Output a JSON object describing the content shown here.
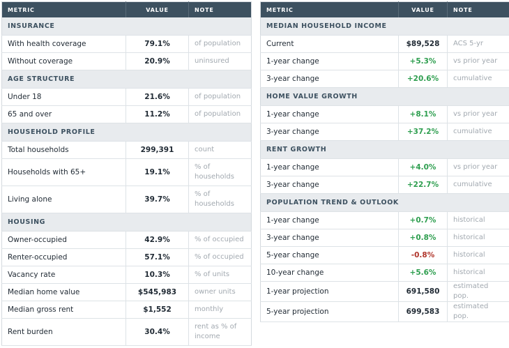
{
  "headers": {
    "metric": "Metric",
    "value": "Value",
    "note": "Note"
  },
  "left": {
    "sections": [
      {
        "title": "Insurance",
        "rows": [
          {
            "metric": "With health coverage",
            "value": "79.1%",
            "note": "of population"
          },
          {
            "metric": "Without coverage",
            "value": "20.9%",
            "note": "uninsured"
          }
        ]
      },
      {
        "title": "Age Structure",
        "rows": [
          {
            "metric": "Under 18",
            "value": "21.6%",
            "note": "of population"
          },
          {
            "metric": "65 and over",
            "value": "11.2%",
            "note": "of population"
          }
        ]
      },
      {
        "title": "Household Profile",
        "rows": [
          {
            "metric": "Total households",
            "value": "299,391",
            "note": "count"
          },
          {
            "metric": "Households with 65+",
            "value": "19.1%",
            "note": "% of households"
          },
          {
            "metric": "Living alone",
            "value": "39.7%",
            "note": "% of households"
          }
        ]
      },
      {
        "title": "Housing",
        "rows": [
          {
            "metric": "Owner-occupied",
            "value": "42.9%",
            "note": "% of occupied"
          },
          {
            "metric": "Renter-occupied",
            "value": "57.1%",
            "note": "% of occupied"
          },
          {
            "metric": "Vacancy rate",
            "value": "10.3%",
            "note": "% of units"
          },
          {
            "metric": "Median home value",
            "value": "$545,983",
            "note": "owner units"
          },
          {
            "metric": "Median gross rent",
            "value": "$1,552",
            "note": "monthly"
          },
          {
            "metric": "Rent burden",
            "value": "30.4%",
            "note": "rent as % of income"
          }
        ]
      }
    ]
  },
  "right": {
    "sections": [
      {
        "title": "Median Household Income",
        "rows": [
          {
            "metric": "Current",
            "value": "$89,528",
            "note": "ACS 5-yr"
          },
          {
            "metric": "1-year change",
            "value": "+5.3%",
            "note": "vs prior year"
          },
          {
            "metric": "3-year change",
            "value": "+20.6%",
            "note": "cumulative"
          }
        ]
      },
      {
        "title": "Home Value Growth",
        "rows": [
          {
            "metric": "1-year change",
            "value": "+8.1%",
            "note": "vs prior year"
          },
          {
            "metric": "3-year change",
            "value": "+37.2%",
            "note": "cumulative"
          }
        ]
      },
      {
        "title": "Rent Growth",
        "rows": [
          {
            "metric": "1-year change",
            "value": "+4.0%",
            "note": "vs prior year"
          },
          {
            "metric": "3-year change",
            "value": "+22.7%",
            "note": "cumulative"
          }
        ]
      },
      {
        "title": "Population Trend & Outlook",
        "rows": [
          {
            "metric": "1-year change",
            "value": "+0.7%",
            "note": "historical"
          },
          {
            "metric": "3-year change",
            "value": "+0.8%",
            "note": "historical"
          },
          {
            "metric": "5-year change",
            "value": "-0.8%",
            "note": "historical"
          },
          {
            "metric": "10-year change",
            "value": "+5.6%",
            "note": "historical"
          },
          {
            "metric": "1-year projection",
            "value": "691,580",
            "note": "estimated pop."
          },
          {
            "metric": "5-year projection",
            "value": "699,583",
            "note": "estimated pop."
          }
        ]
      }
    ]
  }
}
